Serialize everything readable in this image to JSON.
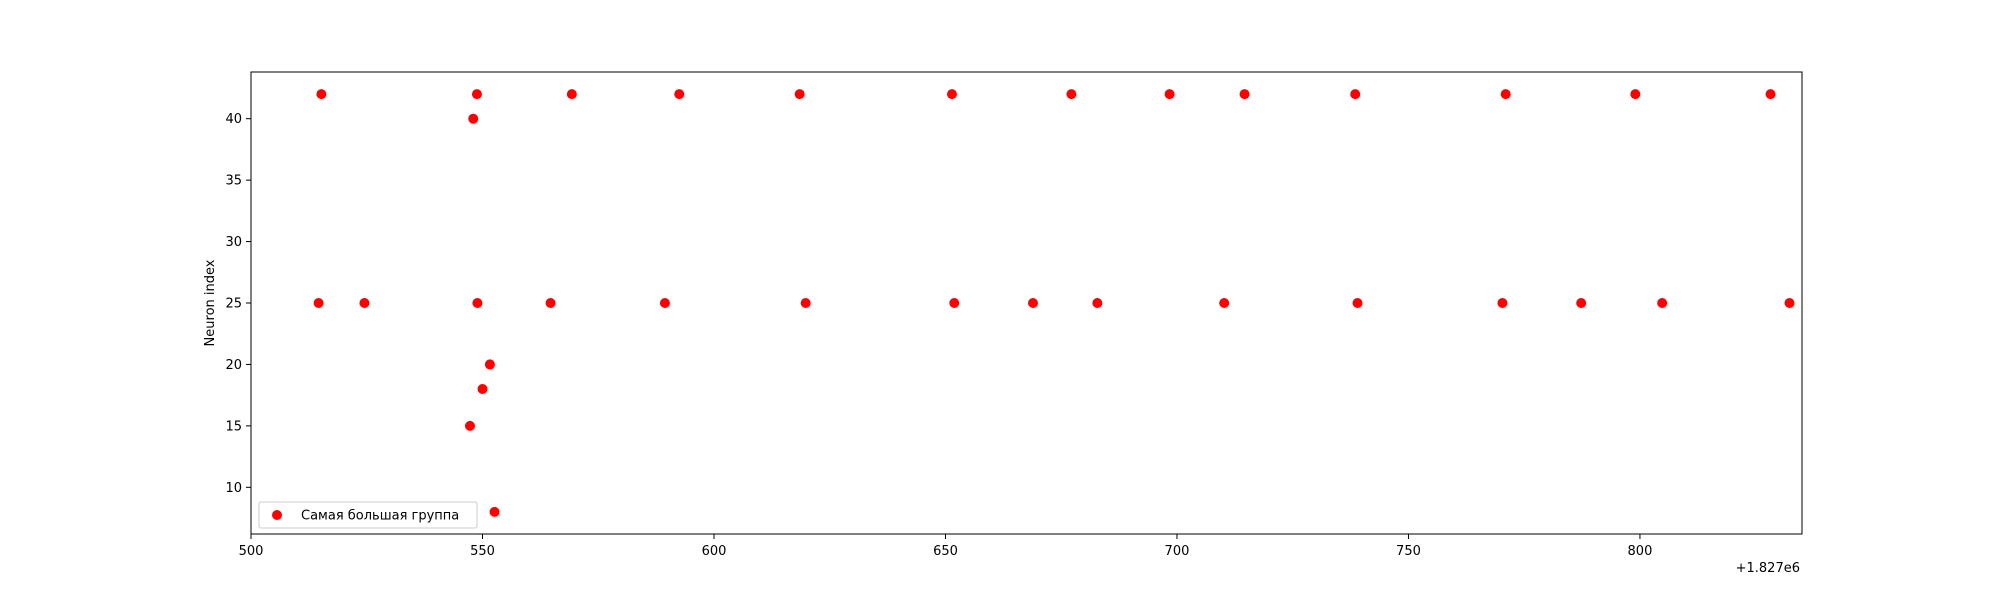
{
  "chart_data": {
    "type": "scatter",
    "title": "",
    "xlabel": "",
    "ylabel": "Neuron index",
    "x_offset_label": "+1.827e6",
    "xlim": [
      500,
      835
    ],
    "ylim": [
      6.2,
      43.8
    ],
    "xticks": [
      500,
      550,
      600,
      650,
      700,
      750,
      800
    ],
    "yticks": [
      10,
      15,
      20,
      25,
      30,
      35,
      40
    ],
    "grid": false,
    "legend_position": "lower-left",
    "series": [
      {
        "name": "Самая большая группа",
        "color": "#ff0000",
        "points": [
          {
            "x": 515.2,
            "y": 42
          },
          {
            "x": 548.8,
            "y": 42
          },
          {
            "x": 569.3,
            "y": 42
          },
          {
            "x": 592.5,
            "y": 42
          },
          {
            "x": 618.5,
            "y": 42
          },
          {
            "x": 651.4,
            "y": 42
          },
          {
            "x": 677.2,
            "y": 42
          },
          {
            "x": 698.4,
            "y": 42
          },
          {
            "x": 714.6,
            "y": 42
          },
          {
            "x": 738.5,
            "y": 42
          },
          {
            "x": 771.0,
            "y": 42
          },
          {
            "x": 799.0,
            "y": 42
          },
          {
            "x": 828.2,
            "y": 42
          },
          {
            "x": 548.0,
            "y": 40
          },
          {
            "x": 514.6,
            "y": 25
          },
          {
            "x": 524.5,
            "y": 25
          },
          {
            "x": 548.9,
            "y": 25
          },
          {
            "x": 564.7,
            "y": 25
          },
          {
            "x": 589.4,
            "y": 25
          },
          {
            "x": 619.8,
            "y": 25
          },
          {
            "x": 651.9,
            "y": 25
          },
          {
            "x": 668.9,
            "y": 25
          },
          {
            "x": 682.8,
            "y": 25
          },
          {
            "x": 710.2,
            "y": 25
          },
          {
            "x": 739.0,
            "y": 25
          },
          {
            "x": 770.3,
            "y": 25
          },
          {
            "x": 787.3,
            "y": 25
          },
          {
            "x": 804.8,
            "y": 25
          },
          {
            "x": 832.3,
            "y": 25
          },
          {
            "x": 551.6,
            "y": 20
          },
          {
            "x": 550.0,
            "y": 18
          },
          {
            "x": 547.3,
            "y": 15
          },
          {
            "x": 552.6,
            "y": 8
          }
        ]
      }
    ]
  }
}
